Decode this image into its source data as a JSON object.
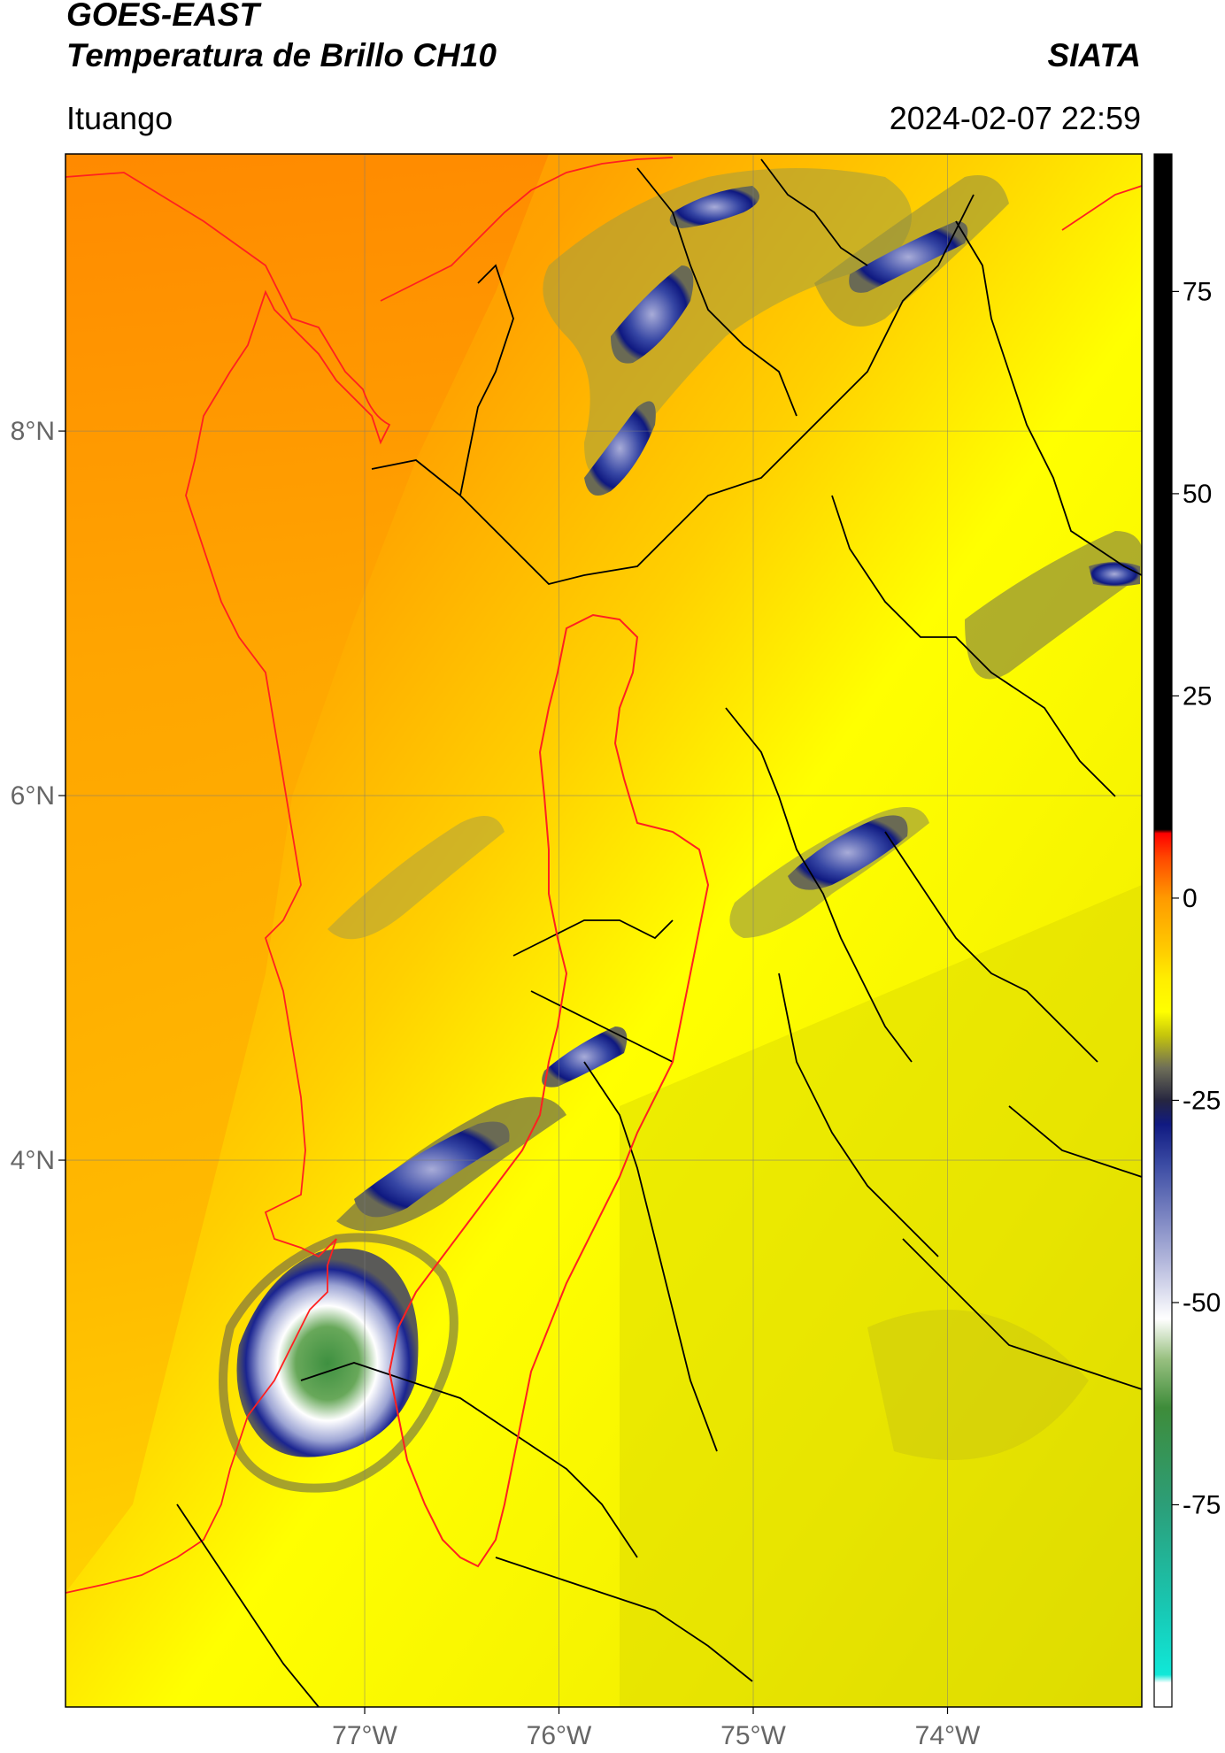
{
  "header": {
    "satellite": "GOES-EAST",
    "product": "Temperatura de Brillo CH10",
    "agency": "SIATA",
    "region": "Ituango",
    "datetime": "2024-02-07 22:59"
  },
  "chart_data": {
    "type": "heatmap",
    "title": "Temperatura de Brillo CH10",
    "x_ticks": [
      {
        "value": -77,
        "label": "77°W"
      },
      {
        "value": -76,
        "label": "76°W"
      },
      {
        "value": -75,
        "label": "75°W"
      },
      {
        "value": -74,
        "label": "74°W"
      }
    ],
    "y_ticks": [
      {
        "value": 8,
        "label": "8°N"
      },
      {
        "value": 6,
        "label": "6°N"
      },
      {
        "value": 4,
        "label": "4°N"
      }
    ],
    "xlim": [
      -78.54,
      -73.0
    ],
    "ylim": [
      1.0,
      9.52
    ],
    "grid": true,
    "colorbar": {
      "range": [
        -100,
        92
      ],
      "ticks": [
        75,
        50,
        25,
        0,
        -25,
        -50,
        -75
      ],
      "stops": [
        {
          "value": -100,
          "color": "#ffffff"
        },
        {
          "value": -97,
          "color": "#ffffff"
        },
        {
          "value": -96,
          "color": "#10e8d8"
        },
        {
          "value": -88,
          "color": "#18c8b4"
        },
        {
          "value": -75,
          "color": "#2c9e78"
        },
        {
          "value": -63,
          "color": "#3e8c3a"
        },
        {
          "value": -57,
          "color": "#98c080"
        },
        {
          "value": -52,
          "color": "#ffffff"
        },
        {
          "value": -45,
          "color": "#b4b8dc"
        },
        {
          "value": -33,
          "color": "#3c4ca4"
        },
        {
          "value": -28,
          "color": "#101a82"
        },
        {
          "value": -25,
          "color": "#262640"
        },
        {
          "value": -21,
          "color": "#6e6e58"
        },
        {
          "value": -17,
          "color": "#c4c40c"
        },
        {
          "value": -14,
          "color": "#ffff00"
        },
        {
          "value": -10,
          "color": "#ffee00"
        },
        {
          "value": -6,
          "color": "#ffc800"
        },
        {
          "value": 0,
          "color": "#ff9a00"
        },
        {
          "value": 5,
          "color": "#ff4800"
        },
        {
          "value": 8,
          "color": "#ff0000"
        },
        {
          "value": 8.5,
          "color": "#000000"
        },
        {
          "value": 92,
          "color": "#000000"
        }
      ]
    },
    "features": {
      "coastline": "red",
      "department_borders": "black",
      "ituango_basin": "red"
    }
  }
}
